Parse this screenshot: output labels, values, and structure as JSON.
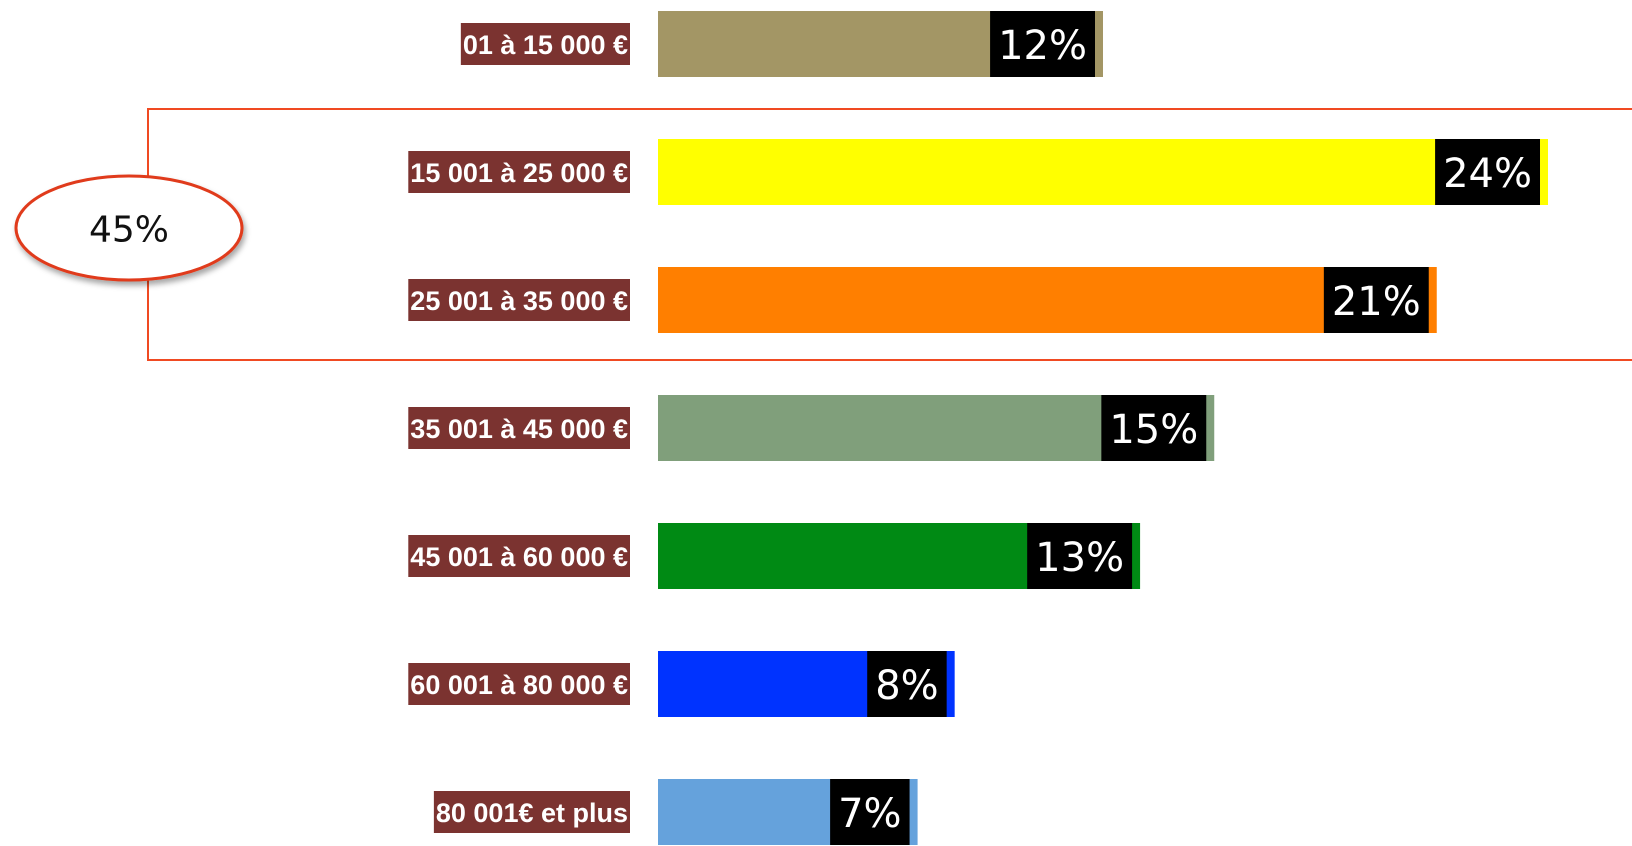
{
  "chart_data": {
    "type": "bar",
    "orientation": "horizontal",
    "categories": [
      "01 à 15 000 €",
      "15 001 à 25 000 €",
      "25 001 à 35 000 €",
      "35 001 à 45 000 €",
      "45 001 à 60 000 €",
      "60 001 à 80 000 €",
      "80 001€ et plus"
    ],
    "values": [
      12,
      24,
      21,
      15,
      13,
      8,
      7
    ],
    "value_labels": [
      "12%",
      "24%",
      "21%",
      "15%",
      "13%",
      "8%",
      "7%"
    ],
    "colors": [
      "#a39665",
      "#ffff00",
      "#ff7f00",
      "#809f7b",
      "#008a14",
      "#0033ff",
      "#65a2dc"
    ],
    "annotation": {
      "value": 45,
      "label": "45%"
    }
  }
}
